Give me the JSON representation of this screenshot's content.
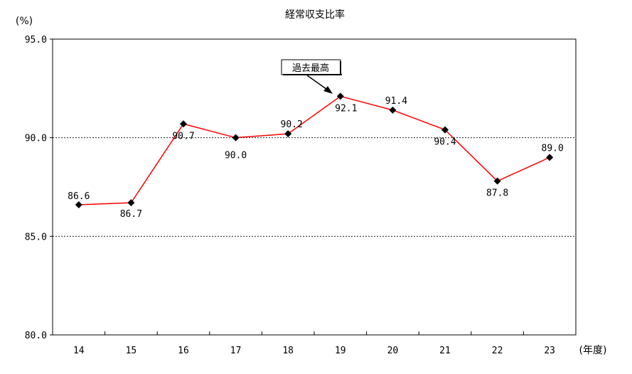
{
  "chart_data": {
    "type": "line",
    "title": "経常収支比率",
    "ylabel": "(%)",
    "xlabel": "(年度)",
    "categories": [
      "14",
      "15",
      "16",
      "17",
      "18",
      "19",
      "20",
      "21",
      "22",
      "23"
    ],
    "series": [
      {
        "values": [
          86.6,
          86.7,
          90.7,
          90.0,
          90.2,
          92.1,
          91.4,
          90.4,
          87.8,
          89.0
        ],
        "data_labels": [
          "86.6",
          "86.7",
          "90.7",
          "90.0",
          "90.2",
          "92.1",
          "91.4",
          "90.4",
          "87.8",
          "89.0"
        ],
        "color": "#ff0000",
        "marker_color": "#000000"
      }
    ],
    "ylim": [
      80.0,
      95.0
    ],
    "yticks": [
      "80.0",
      "85.0",
      "90.0",
      "95.0"
    ],
    "gridlines": [
      85.0,
      90.0
    ],
    "grid": "horizontal-dotted",
    "legend": "none",
    "annotation": {
      "text": "過去最高",
      "target_category": "19"
    }
  }
}
